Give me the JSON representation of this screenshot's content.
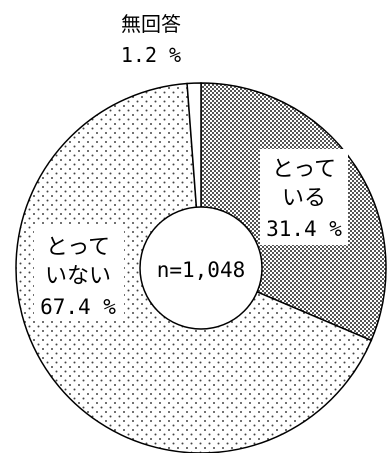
{
  "chart_data": {
    "type": "pie",
    "style": "donut",
    "center_label": "n=1,048",
    "slices": [
      {
        "label_lines": [
          "とって",
          "いる"
        ],
        "percent_text": "31.4 %",
        "value": 31.4,
        "pattern": "dense-crosshatch"
      },
      {
        "label_lines": [
          "とって",
          "いない"
        ],
        "percent_text": "67.4 %",
        "value": 67.4,
        "pattern": "sparse-dots"
      },
      {
        "label_lines": [
          "無回答"
        ],
        "percent_text": "1.2 %",
        "value": 1.2,
        "pattern": "white"
      }
    ]
  }
}
